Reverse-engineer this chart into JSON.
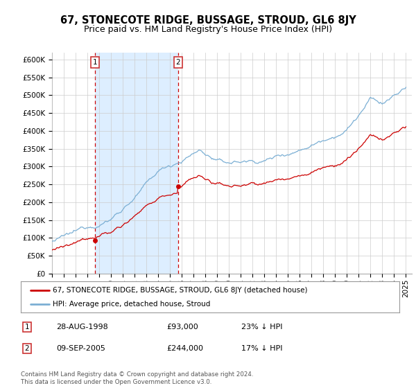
{
  "title": "67, STONECOTE RIDGE, BUSSAGE, STROUD, GL6 8JY",
  "subtitle": "Price paid vs. HM Land Registry's House Price Index (HPI)",
  "legend_line1": "67, STONECOTE RIDGE, BUSSAGE, STROUD, GL6 8JY (detached house)",
  "legend_line2": "HPI: Average price, detached house, Stroud",
  "annotation1_label": "1",
  "annotation1_date": "28-AUG-1998",
  "annotation1_price": "£93,000",
  "annotation1_hpi": "23% ↓ HPI",
  "annotation1_year": 1998.65,
  "annotation1_value": 93000,
  "annotation2_label": "2",
  "annotation2_date": "09-SEP-2005",
  "annotation2_price": "£244,000",
  "annotation2_hpi": "17% ↓ HPI",
  "annotation2_year": 2005.69,
  "annotation2_value": 244000,
  "xmin": 1995,
  "xmax": 2025.5,
  "ymin": 0,
  "ymax": 620000,
  "yticks": [
    0,
    50000,
    100000,
    150000,
    200000,
    250000,
    300000,
    350000,
    400000,
    450000,
    500000,
    550000,
    600000
  ],
  "price_color": "#cc0000",
  "hpi_color": "#7bafd4",
  "shade_color": "#ddeeff",
  "plot_bg_color": "#ffffff",
  "grid_color": "#cccccc",
  "footer_text": "Contains HM Land Registry data © Crown copyright and database right 2024.\nThis data is licensed under the Open Government Licence v3.0.",
  "title_fontsize": 10.5,
  "subtitle_fontsize": 9,
  "tick_fontsize": 7.5
}
